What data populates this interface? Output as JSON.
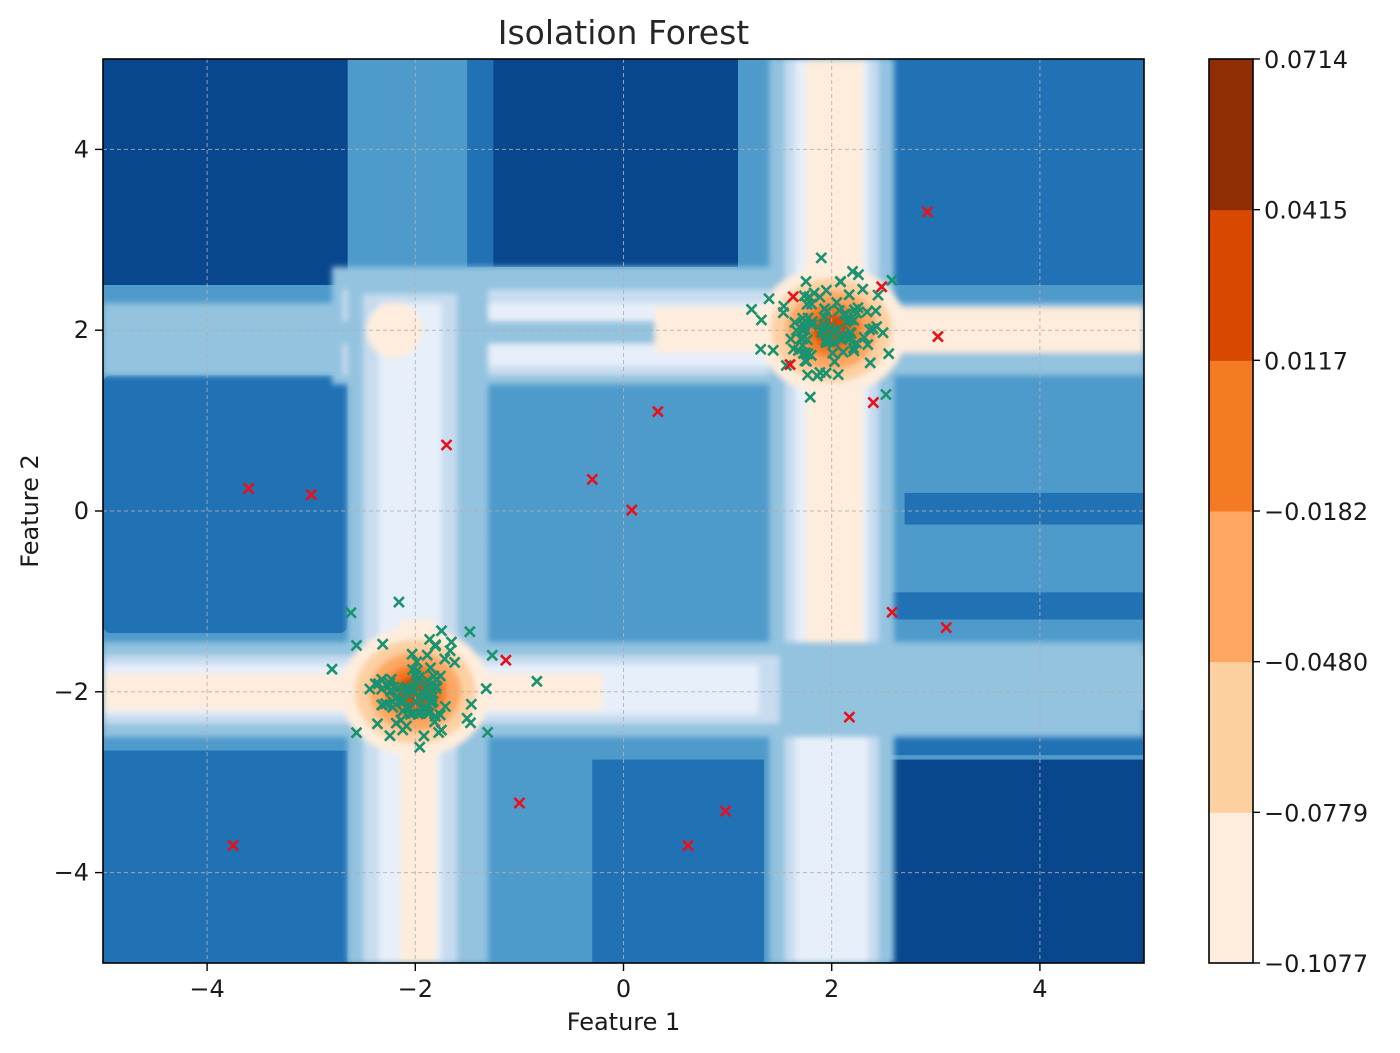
{
  "chart_data": {
    "type": "scatter",
    "title": "Isolation Forest",
    "xlabel": "Feature 1",
    "ylabel": "Feature 2",
    "xlim": [
      -5,
      5
    ],
    "ylim": [
      -5,
      5
    ],
    "xticks": [
      -4,
      -2,
      0,
      2,
      4
    ],
    "yticks": [
      -4,
      -2,
      0,
      2,
      4
    ],
    "xtick_labels": [
      "−4",
      "−2",
      "0",
      "2",
      "4"
    ],
    "ytick_labels": [
      "−4",
      "−2",
      "0",
      "2",
      "4"
    ],
    "grid": true,
    "background": "filled contour of anomaly score (Blues for low, Oranges for high)",
    "colorbar": {
      "levels": [
        -0.1077,
        -0.0779,
        -0.048,
        -0.0182,
        0.0117,
        0.0415,
        0.0714
      ],
      "tick_labels": [
        "−0.1077",
        "−0.0779",
        "−0.0480",
        "−0.0182",
        "0.0117",
        "0.0415",
        "0.0714"
      ],
      "colors": [
        "#feeddc",
        "#fdd0a2",
        "#fda762",
        "#f57a24",
        "#d94801",
        "#8f2d04"
      ]
    },
    "contour_colors": {
      "blue_darkest": "#08478d",
      "blue_dark": "#2171b5",
      "blue_mid": "#4e9acb",
      "blue_light": "#93c3df",
      "blue_pale": "#c7dcef",
      "blue_palest": "#e6effa",
      "orange_1": "#feeddc",
      "orange_2": "#fdd0a2",
      "orange_3": "#fda762",
      "orange_4": "#f57a24",
      "orange_5": "#d94801"
    },
    "series": [
      {
        "marker": "x",
        "color": "#1a9270",
        "clusters": [
          {
            "center": [
              -2.0,
              -2.0
            ],
            "count": 100,
            "spread": 0.3
          },
          {
            "center": [
              2.0,
              2.0
            ],
            "count": 100,
            "spread": 0.3
          }
        ],
        "points": [
          [
            -2.8,
            -1.75
          ],
          [
            1.23,
            2.23
          ],
          [
            1.9,
            2.8
          ],
          [
            2.2,
            2.65
          ]
        ]
      },
      {
        "marker": "x",
        "color": "#e8101a",
        "points": [
          [
            -3.6,
            0.25
          ],
          [
            -3.0,
            0.18
          ],
          [
            -1.7,
            0.73
          ],
          [
            -0.3,
            0.35
          ],
          [
            0.08,
            0.01
          ],
          [
            0.33,
            1.1
          ],
          [
            -1.13,
            -1.65
          ],
          [
            -1.0,
            -3.23
          ],
          [
            0.62,
            -3.7
          ],
          [
            0.98,
            -3.32
          ],
          [
            -3.75,
            -3.7
          ],
          [
            2.92,
            3.31
          ],
          [
            2.48,
            2.48
          ],
          [
            3.02,
            1.93
          ],
          [
            1.63,
            2.37
          ],
          [
            1.6,
            1.62
          ],
          [
            2.4,
            1.2
          ],
          [
            2.58,
            -1.12
          ],
          [
            3.1,
            -1.29
          ],
          [
            2.17,
            -2.28
          ]
        ]
      }
    ]
  }
}
